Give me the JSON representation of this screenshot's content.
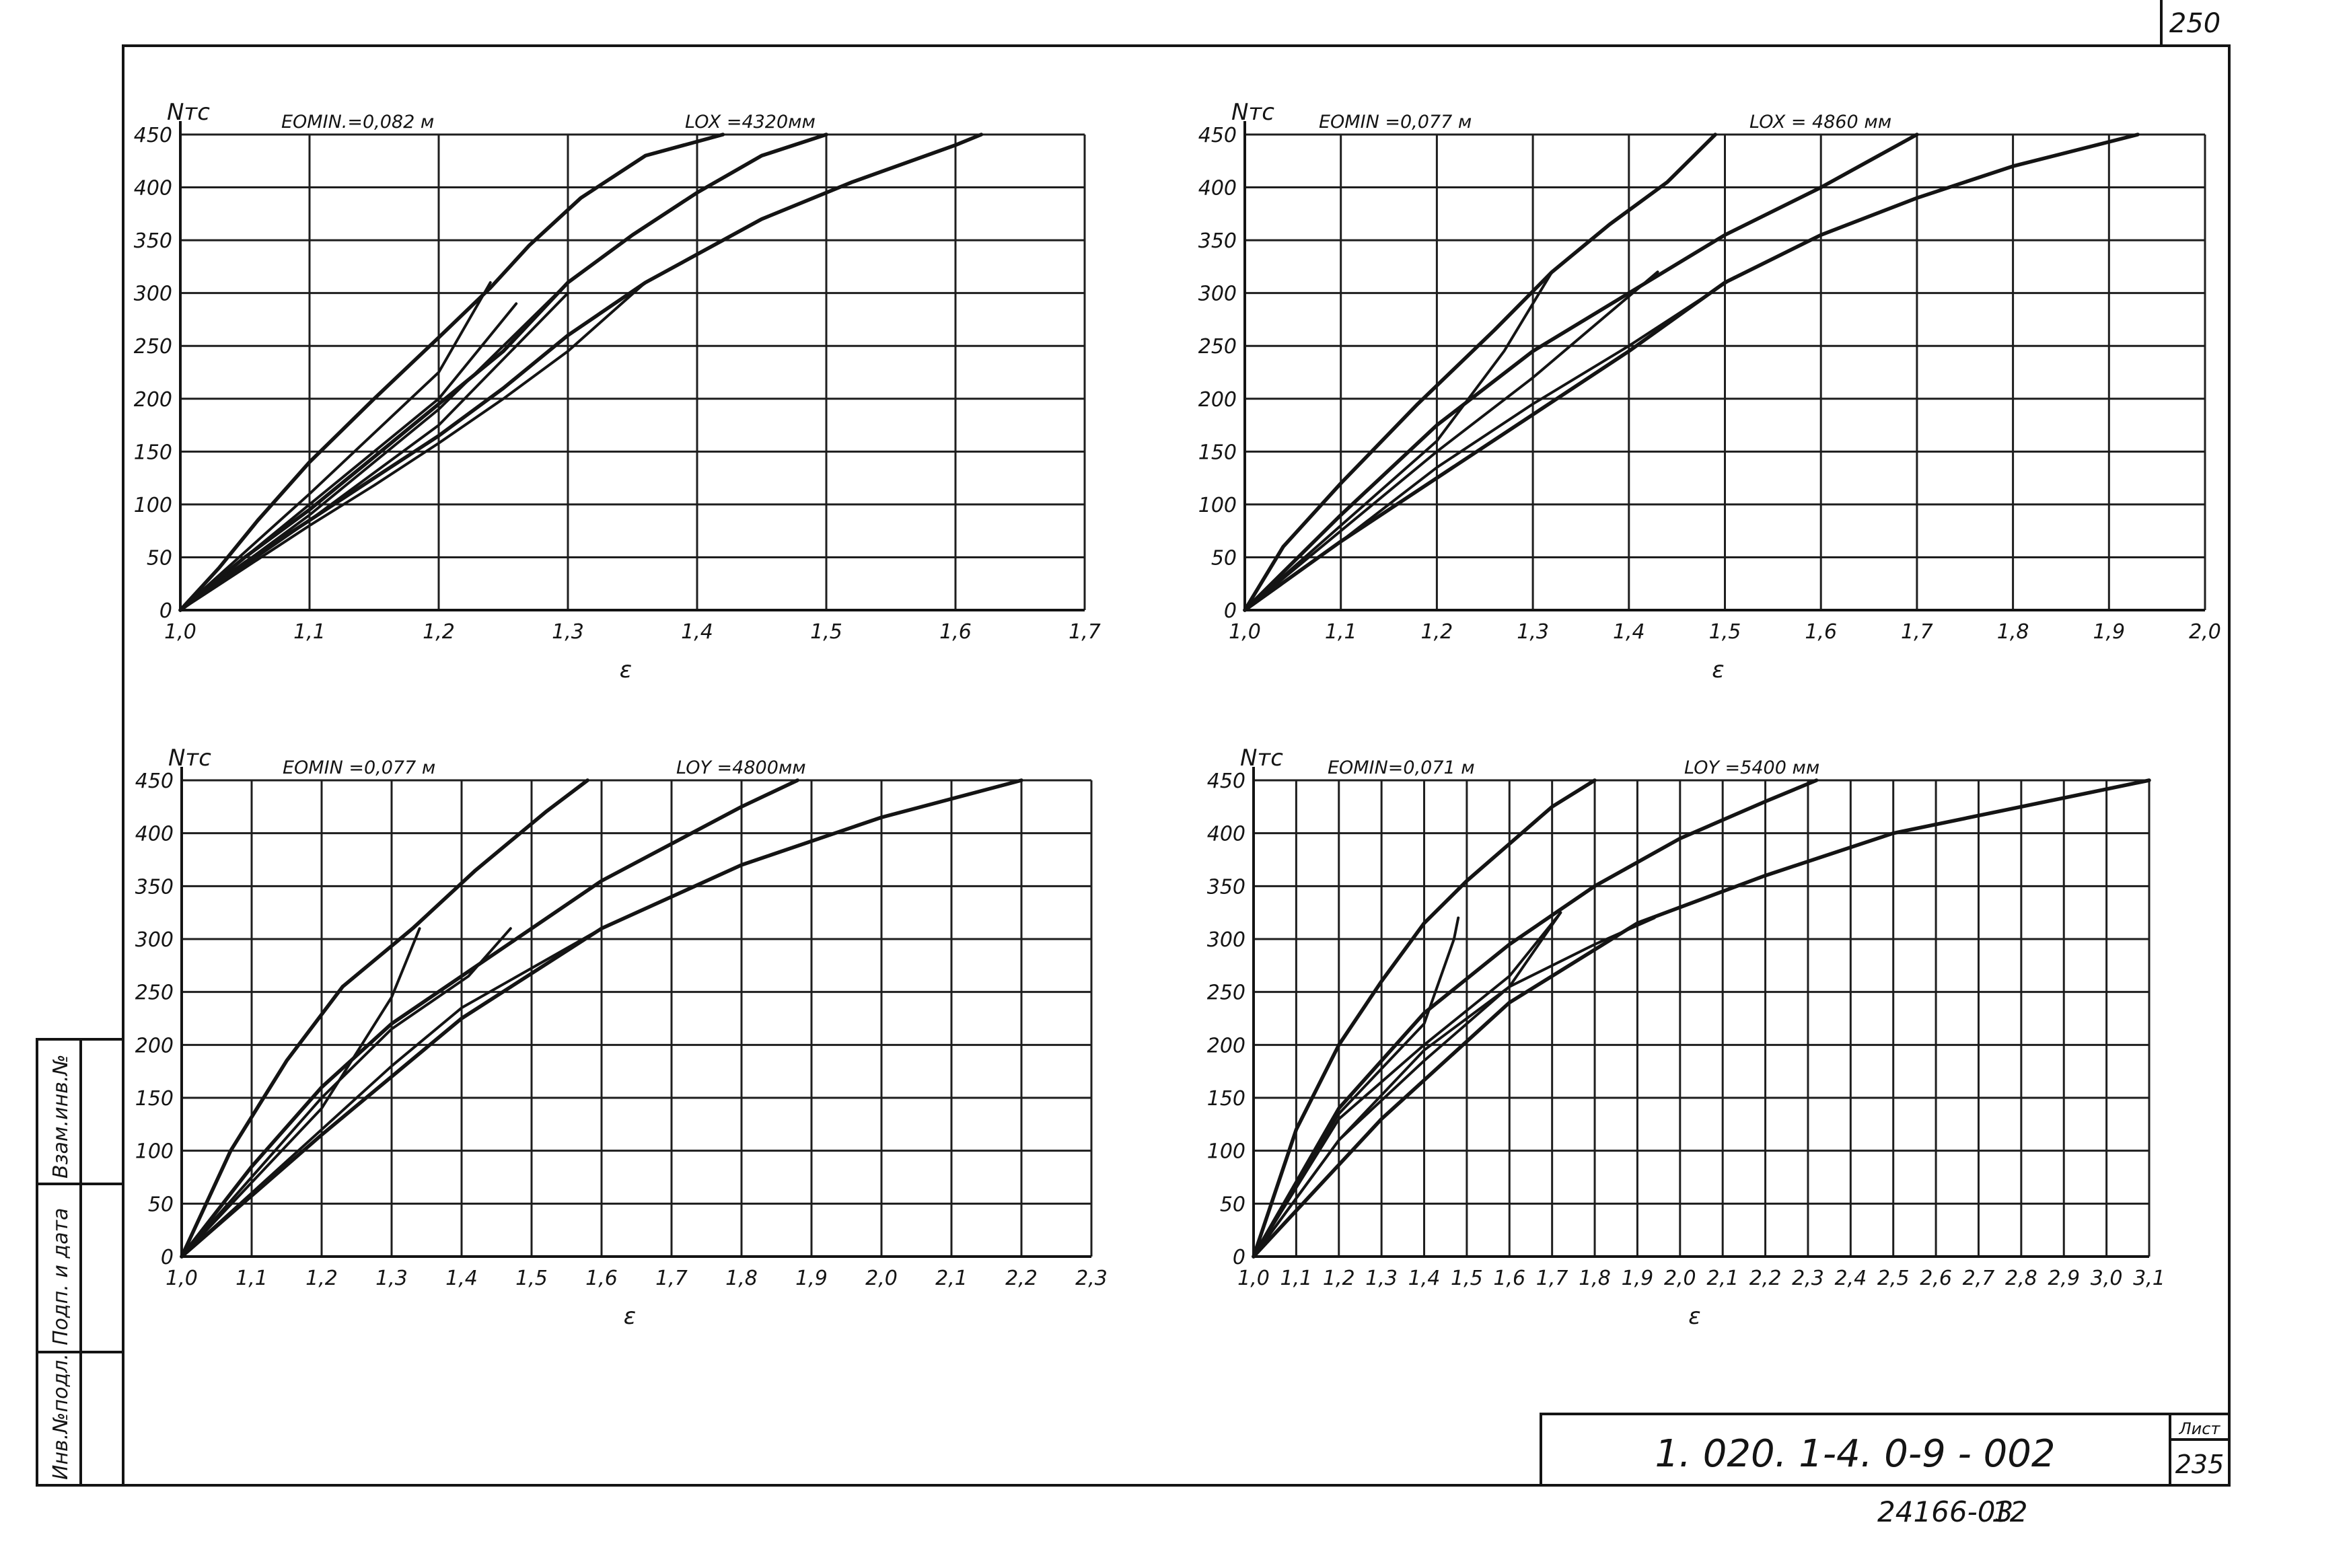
{
  "sheet": {
    "corner_number": "250",
    "document_code": "1. 020. 1-4. 0-9 - 002",
    "sheet_label": "Лист",
    "sheet_number": "235",
    "archive_number": "24166-03",
    "copy_number": "12",
    "side_stamp": [
      "Инв.№подл.",
      "Подп. и дата",
      "Взам.инв.№"
    ]
  },
  "colors": {
    "ink": "#141414",
    "paper": "#ffffff"
  },
  "chart_data": [
    {
      "type": "line",
      "ylabel": "Nтс",
      "xlabel": "ε",
      "header": [
        "EOMIN.=0,082 м",
        "LOX =4320мм"
      ],
      "xlim": [
        1.0,
        1.7
      ],
      "ylim": [
        0,
        450
      ],
      "x_ticks": [
        "1,0",
        "1,1",
        "1,2",
        "1,3",
        "1,4",
        "1,5",
        "1,6",
        "1,7"
      ],
      "y_ticks": [
        "0",
        "50",
        "100",
        "150",
        "200",
        "250",
        "300",
        "350",
        "400",
        "450"
      ],
      "grid": true,
      "curves": [
        {
          "x": [
            1.0,
            1.03,
            1.06,
            1.1,
            1.15,
            1.2,
            1.24,
            1.27,
            1.31,
            1.36,
            1.42
          ],
          "y": [
            0,
            40,
            85,
            140,
            200,
            258,
            305,
            345,
            390,
            430,
            450
          ]
        },
        {
          "x": [
            1.0,
            1.05,
            1.1,
            1.15,
            1.2,
            1.25,
            1.3,
            1.35,
            1.4,
            1.45,
            1.5
          ],
          "y": [
            0,
            50,
            95,
            145,
            195,
            245,
            310,
            355,
            395,
            430,
            450
          ]
        },
        {
          "x": [
            1.0,
            1.05,
            1.1,
            1.15,
            1.2,
            1.25,
            1.3,
            1.36,
            1.45,
            1.52,
            1.6,
            1.62
          ],
          "y": [
            0,
            45,
            85,
            125,
            165,
            210,
            260,
            310,
            370,
            405,
            440,
            450
          ]
        },
        {
          "x": [
            1.0,
            1.05,
            1.1,
            1.15,
            1.2,
            1.25,
            1.3,
            1.36
          ],
          "y": [
            0,
            40,
            80,
            118,
            158,
            200,
            245,
            310
          ]
        },
        {
          "x": [
            1.0,
            1.1,
            1.2,
            1.26
          ],
          "y": [
            0,
            100,
            200,
            290
          ]
        },
        {
          "x": [
            1.0,
            1.1,
            1.2,
            1.3
          ],
          "y": [
            0,
            85,
            175,
            300
          ]
        },
        {
          "x": [
            1.0,
            1.1,
            1.2,
            1.24
          ],
          "y": [
            0,
            110,
            225,
            310
          ]
        },
        {
          "x": [
            1.0,
            1.1,
            1.2,
            1.3
          ],
          "y": [
            0,
            90,
            190,
            310
          ]
        }
      ]
    },
    {
      "type": "line",
      "ylabel": "Nтс",
      "xlabel": "ε",
      "header": [
        "EOMIN =0,077 м",
        "LOX = 4860 мм"
      ],
      "xlim": [
        1.0,
        2.0
      ],
      "ylim": [
        0,
        450
      ],
      "x_ticks": [
        "1,0",
        "1,1",
        "1,2",
        "1,3",
        "1,4",
        "1,5",
        "1,6",
        "1,7",
        "1,8",
        "1,9",
        "2,0"
      ],
      "y_ticks": [
        "0",
        "50",
        "100",
        "150",
        "200",
        "250",
        "300",
        "350",
        "400",
        "450"
      ],
      "grid": true,
      "curves": [
        {
          "x": [
            1.0,
            1.04,
            1.1,
            1.18,
            1.26,
            1.32,
            1.38,
            1.44,
            1.49
          ],
          "y": [
            0,
            60,
            120,
            195,
            265,
            320,
            365,
            405,
            450
          ]
        },
        {
          "x": [
            1.0,
            1.1,
            1.2,
            1.3,
            1.4,
            1.5,
            1.6,
            1.7
          ],
          "y": [
            0,
            90,
            175,
            245,
            300,
            355,
            400,
            450
          ]
        },
        {
          "x": [
            1.0,
            1.1,
            1.2,
            1.3,
            1.4,
            1.5,
            1.6,
            1.7,
            1.8,
            1.93
          ],
          "y": [
            0,
            65,
            125,
            185,
            245,
            310,
            355,
            390,
            420,
            450
          ]
        },
        {
          "x": [
            1.0,
            1.1,
            1.2,
            1.3,
            1.4,
            1.51
          ],
          "y": [
            0,
            65,
            135,
            195,
            250,
            315
          ]
        },
        {
          "x": [
            1.0,
            1.1,
            1.2,
            1.27,
            1.32
          ],
          "y": [
            0,
            80,
            160,
            245,
            320
          ]
        },
        {
          "x": [
            1.0,
            1.1,
            1.2,
            1.3,
            1.43
          ],
          "y": [
            0,
            75,
            150,
            220,
            320
          ]
        }
      ]
    },
    {
      "type": "line",
      "ylabel": "Nтс",
      "xlabel": "ε",
      "header": [
        "EOMIN =0,077 м",
        "LOY =4800мм"
      ],
      "xlim": [
        1.0,
        2.3
      ],
      "ylim": [
        0,
        450
      ],
      "x_ticks": [
        "1,0",
        "1,1",
        "1,2",
        "1,3",
        "1,4",
        "1,5",
        "1,6",
        "1,7",
        "1,8",
        "1,9",
        "2,0",
        "2,1",
        "2,2",
        "2,3"
      ],
      "y_ticks": [
        "0",
        "50",
        "100",
        "150",
        "200",
        "250",
        "300",
        "350",
        "400",
        "450"
      ],
      "grid": true,
      "curves": [
        {
          "x": [
            1.0,
            1.07,
            1.15,
            1.23,
            1.33,
            1.42,
            1.52,
            1.58
          ],
          "y": [
            0,
            100,
            185,
            255,
            310,
            365,
            420,
            450
          ]
        },
        {
          "x": [
            1.0,
            1.1,
            1.2,
            1.3,
            1.4,
            1.5,
            1.6,
            1.7,
            1.8,
            1.88
          ],
          "y": [
            0,
            85,
            160,
            220,
            265,
            310,
            355,
            390,
            425,
            450
          ]
        },
        {
          "x": [
            1.0,
            1.2,
            1.4,
            1.6,
            1.8,
            2.0,
            2.2
          ],
          "y": [
            0,
            115,
            225,
            310,
            370,
            415,
            450
          ]
        },
        {
          "x": [
            1.0,
            1.1,
            1.2,
            1.3,
            1.4,
            1.6
          ],
          "y": [
            0,
            60,
            120,
            180,
            235,
            310
          ]
        },
        {
          "x": [
            1.0,
            1.1,
            1.2,
            1.3,
            1.34
          ],
          "y": [
            0,
            70,
            140,
            245,
            310
          ]
        },
        {
          "x": [
            1.0,
            1.1,
            1.2,
            1.3,
            1.41,
            1.47
          ],
          "y": [
            0,
            75,
            150,
            215,
            265,
            310
          ]
        }
      ]
    },
    {
      "type": "line",
      "ylabel": "Nтс",
      "xlabel": "ε",
      "header": [
        "EOMIN=0,071 м",
        "LOY =5400 мм"
      ],
      "xlim": [
        1.0,
        3.1
      ],
      "ylim": [
        0,
        450
      ],
      "x_ticks": [
        "1,0",
        "1,1",
        "1,2",
        "1,3",
        "1,4",
        "1,5",
        "1,6",
        "1,7",
        "1,8",
        "1,9",
        "2,0",
        "2,1",
        "2,2",
        "2,3",
        "2,4",
        "2,5",
        "2,6",
        "2,7",
        "2,8",
        "2,9",
        "3,0",
        "3,1"
      ],
      "y_ticks": [
        "0",
        "50",
        "100",
        "150",
        "200",
        "250",
        "300",
        "350",
        "400",
        "450"
      ],
      "grid": true,
      "curves": [
        {
          "x": [
            1.0,
            1.1,
            1.2,
            1.3,
            1.4,
            1.5,
            1.6,
            1.7,
            1.8
          ],
          "y": [
            0,
            120,
            200,
            260,
            315,
            355,
            390,
            425,
            450
          ]
        },
        {
          "x": [
            1.0,
            1.2,
            1.4,
            1.6,
            1.8,
            2.0,
            2.2,
            2.32
          ],
          "y": [
            0,
            140,
            230,
            295,
            350,
            395,
            430,
            450
          ]
        },
        {
          "x": [
            1.0,
            1.3,
            1.6,
            1.9,
            2.2,
            2.5,
            2.8,
            3.1
          ],
          "y": [
            0,
            130,
            240,
            315,
            360,
            400,
            425,
            450
          ]
        },
        {
          "x": [
            1.0,
            1.2,
            1.4,
            1.6,
            1.8,
            1.94
          ],
          "y": [
            0,
            110,
            195,
            255,
            295,
            320
          ]
        },
        {
          "x": [
            1.0,
            1.2,
            1.4,
            1.47,
            1.48
          ],
          "y": [
            0,
            135,
            220,
            300,
            320
          ]
        },
        {
          "x": [
            1.0,
            1.2,
            1.4,
            1.6,
            1.72
          ],
          "y": [
            0,
            130,
            200,
            265,
            325
          ]
        },
        {
          "x": [
            1.0,
            1.2,
            1.4,
            1.6,
            1.72
          ],
          "y": [
            0,
            110,
            185,
            255,
            325
          ]
        }
      ]
    }
  ]
}
